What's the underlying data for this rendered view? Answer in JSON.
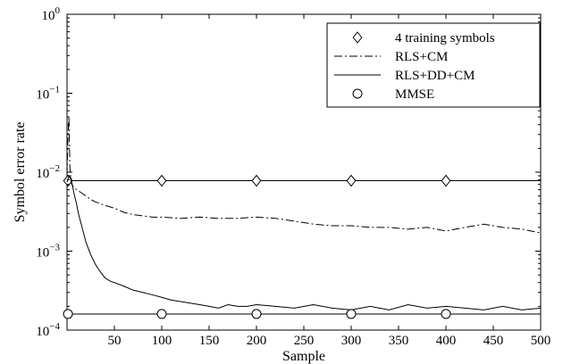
{
  "chart_data": {
    "type": "line",
    "title": "",
    "xlabel": "Sample",
    "ylabel": "Symbol error rate",
    "xlim": [
      0,
      500
    ],
    "ylim": [
      0.0001,
      1
    ],
    "yscale": "log",
    "grid": false,
    "legend_position": "top-right",
    "xticks": [
      50,
      100,
      150,
      200,
      250,
      300,
      350,
      400,
      450,
      500
    ],
    "xtick_labels": [
      "50",
      "100",
      "150",
      "200",
      "250",
      "300",
      "350",
      "400",
      "450",
      "500"
    ],
    "yticks": [
      0.0001,
      0.001,
      0.01,
      0.1,
      1
    ],
    "ytick_labels": [
      {
        "base": "10",
        "exp": "−4"
      },
      {
        "base": "10",
        "exp": "−3"
      },
      {
        "base": "10",
        "exp": "−2"
      },
      {
        "base": "10",
        "exp": "−1"
      },
      {
        "base": "10",
        "exp": "0"
      }
    ],
    "series": [
      {
        "name": "4 training symbols",
        "style": "solid-diamond",
        "x": [
          0,
          500
        ],
        "y": [
          0.0078,
          0.0078
        ],
        "marker_x": [
          1,
          100,
          200,
          300,
          400
        ]
      },
      {
        "name": "RLS+CM",
        "style": "dashdot",
        "x": [
          0,
          1,
          2,
          3,
          4,
          5,
          7,
          10,
          15,
          20,
          25,
          30,
          35,
          40,
          50,
          60,
          70,
          80,
          90,
          100,
          120,
          140,
          160,
          180,
          200,
          220,
          240,
          260,
          280,
          300,
          320,
          340,
          360,
          380,
          400,
          420,
          440,
          460,
          480,
          500
        ],
        "y": [
          0.009,
          0.03,
          0.05,
          0.012,
          0.008,
          0.007,
          0.0065,
          0.006,
          0.0055,
          0.005,
          0.0045,
          0.0042,
          0.004,
          0.0038,
          0.0035,
          0.0031,
          0.0029,
          0.0028,
          0.0027,
          0.0027,
          0.0026,
          0.0027,
          0.0026,
          0.0026,
          0.0027,
          0.0026,
          0.0024,
          0.0022,
          0.0021,
          0.0021,
          0.002,
          0.002,
          0.0019,
          0.002,
          0.0018,
          0.002,
          0.0022,
          0.002,
          0.0019,
          0.0017
        ]
      },
      {
        "name": "RLS+DD+CM",
        "style": "solid",
        "x": [
          0,
          2,
          4,
          6,
          8,
          10,
          12,
          15,
          18,
          20,
          25,
          30,
          35,
          40,
          45,
          50,
          60,
          70,
          80,
          90,
          100,
          110,
          120,
          130,
          140,
          150,
          160,
          170,
          180,
          190,
          200,
          220,
          240,
          260,
          280,
          300,
          320,
          340,
          360,
          380,
          400,
          420,
          440,
          460,
          480,
          500
        ],
        "y": [
          0.0075,
          0.009,
          0.0085,
          0.0065,
          0.005,
          0.004,
          0.003,
          0.0022,
          0.0016,
          0.0013,
          0.0009,
          0.00068,
          0.00055,
          0.00046,
          0.00042,
          0.0004,
          0.00036,
          0.00032,
          0.0003,
          0.00028,
          0.00026,
          0.00024,
          0.00023,
          0.00022,
          0.00021,
          0.0002,
          0.00019,
          0.00021,
          0.0002,
          0.0002,
          0.00021,
          0.0002,
          0.00019,
          0.00021,
          0.00019,
          0.00018,
          0.0002,
          0.00018,
          0.00021,
          0.00019,
          0.0002,
          0.00019,
          0.00018,
          0.0002,
          0.00018,
          0.00019
        ]
      },
      {
        "name": "MMSE",
        "style": "solid-circle",
        "x": [
          0,
          500
        ],
        "y": [
          0.00016,
          0.00016
        ],
        "marker_x": [
          1,
          100,
          200,
          300,
          400
        ]
      }
    ]
  }
}
